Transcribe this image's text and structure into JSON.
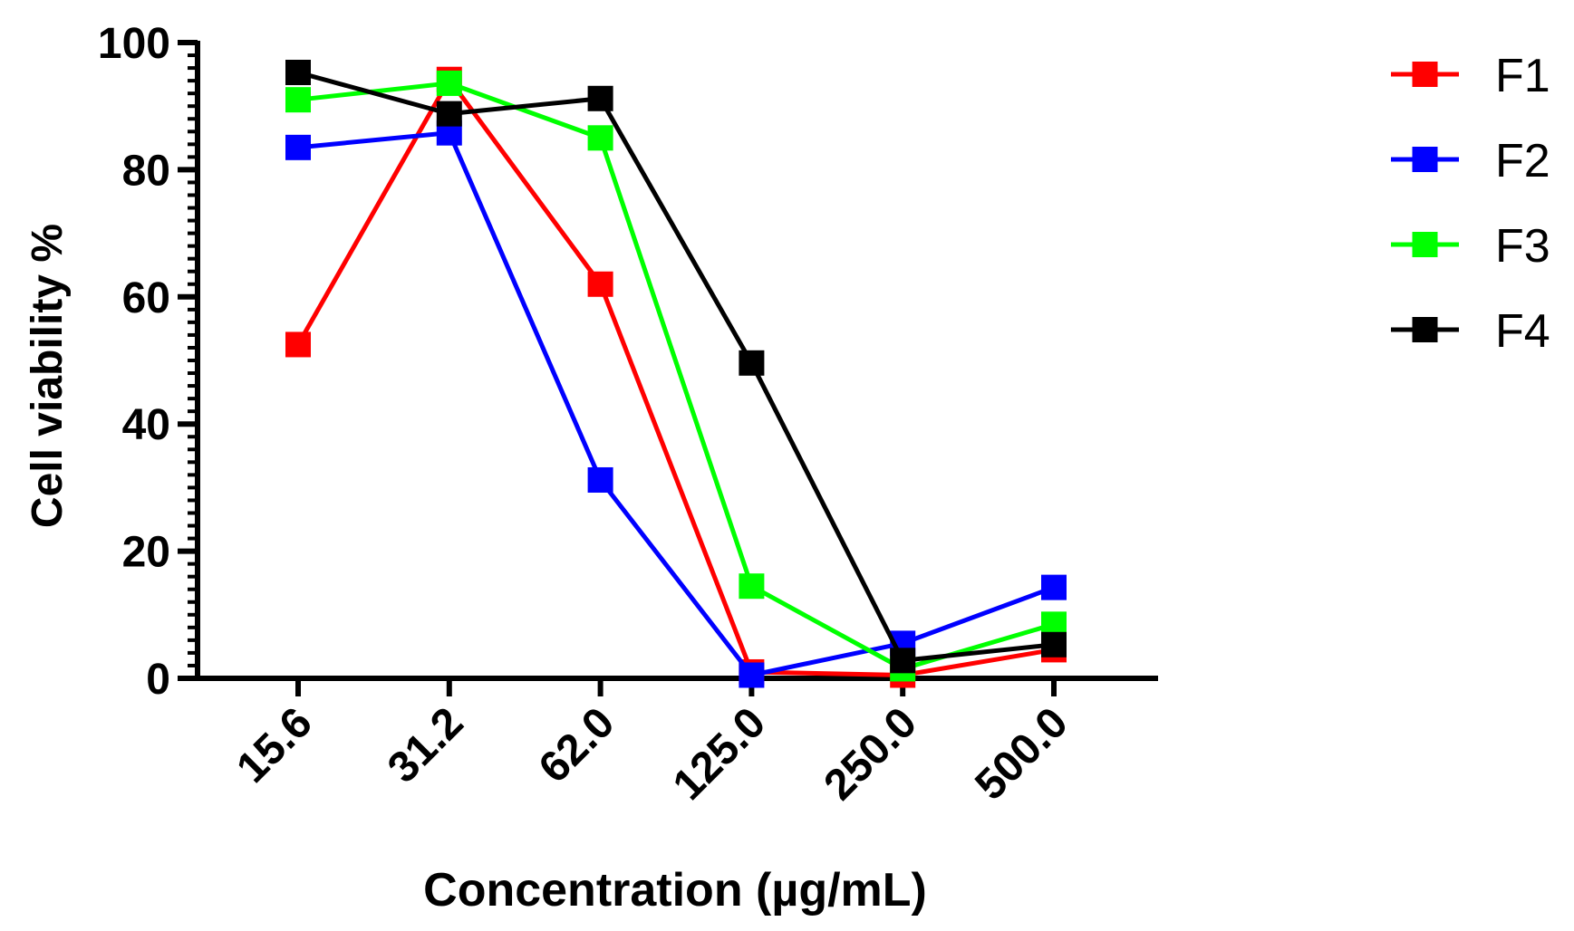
{
  "chart_data": {
    "type": "line",
    "title": "",
    "xlabel": "Concentration (µg/mL)",
    "ylabel": "Cell viability %",
    "categories": [
      "15.6",
      "31.2",
      "62.0",
      "125.0",
      "250.0",
      "500.0"
    ],
    "ylim": [
      0,
      100
    ],
    "yticks": [
      "0",
      "20",
      "40",
      "60",
      "80",
      "100"
    ],
    "legend_position": "right",
    "series": [
      {
        "name": "F1",
        "color": "#ff0000",
        "values": [
          52.5,
          94.2,
          62.0,
          1.0,
          0.5,
          4.5
        ]
      },
      {
        "name": "F2",
        "color": "#0000ff",
        "values": [
          83.5,
          85.8,
          31.2,
          0.5,
          5.5,
          14.3
        ]
      },
      {
        "name": "F3",
        "color": "#00ff00",
        "values": [
          91.0,
          93.6,
          85.0,
          14.5,
          1.5,
          8.5
        ]
      },
      {
        "name": "F4",
        "color": "#000000",
        "values": [
          95.3,
          88.8,
          91.2,
          49.6,
          2.8,
          5.3
        ]
      }
    ]
  }
}
